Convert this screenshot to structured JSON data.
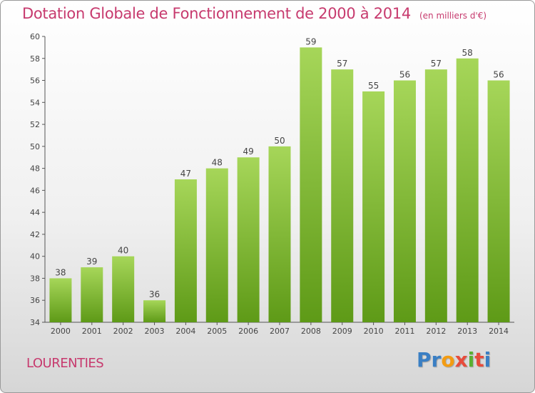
{
  "chart_data": {
    "type": "bar",
    "title": "Dotation Globale de Fonctionnement de 2000 à 2014",
    "subtitle": "(en milliers d'€)",
    "categories": [
      "2000",
      "2001",
      "2002",
      "2003",
      "2004",
      "2005",
      "2006",
      "2007",
      "2008",
      "2009",
      "2010",
      "2011",
      "2012",
      "2013",
      "2014"
    ],
    "values": [
      38,
      39,
      40,
      36,
      47,
      48,
      49,
      50,
      59,
      57,
      55,
      56,
      57,
      58,
      56
    ],
    "ylim": [
      34,
      60
    ],
    "yticks": [
      34,
      36,
      38,
      40,
      42,
      44,
      46,
      48,
      50,
      52,
      54,
      56,
      58,
      60
    ],
    "xlabel": "",
    "ylabel": "",
    "grid": false,
    "bar_color": "#8cc63f"
  },
  "footer": {
    "commune": "LOURENTIES",
    "brand_letters": [
      "P",
      "r",
      "o",
      "x",
      "i",
      "t",
      "i"
    ],
    "brand_colors": [
      "#3a7fc4",
      "#3a7fc4",
      "#f39c12",
      "#e74c3c",
      "#5ab031",
      "#e74c3c",
      "#3a7fc4"
    ]
  },
  "colors": {
    "title": "#c73a6e",
    "axis": "#555555",
    "bar_light": "#a6d659",
    "bar_dark": "#5e9a17"
  }
}
